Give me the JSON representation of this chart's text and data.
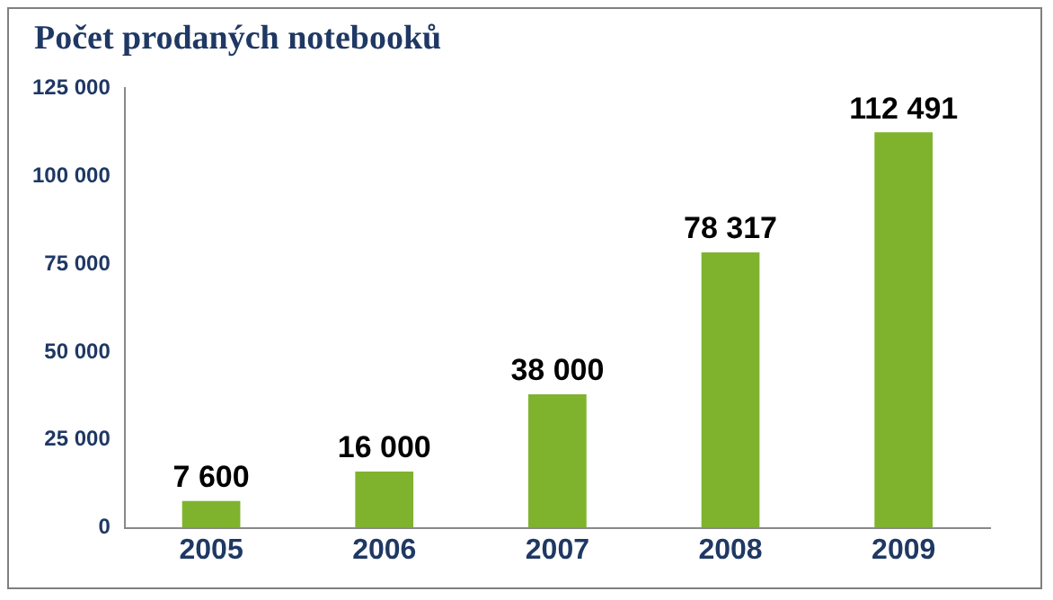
{
  "chart_data": {
    "type": "bar",
    "title": "Počet prodaných notebooků",
    "categories": [
      "2005",
      "2006",
      "2007",
      "2008",
      "2009"
    ],
    "values": [
      7600,
      16000,
      38000,
      78317,
      112491
    ],
    "value_labels": [
      "7 600",
      "16 000",
      "38 000",
      "78 317",
      "112 491"
    ],
    "color": "#7fb32e",
    "ylim": [
      0,
      125000
    ],
    "yticks": [
      {
        "value": 0,
        "label": "0"
      },
      {
        "value": 25000,
        "label": "25 000"
      },
      {
        "value": 50000,
        "label": "50 000"
      },
      {
        "value": 75000,
        "label": "75 000"
      },
      {
        "value": 100000,
        "label": "100 000"
      },
      {
        "value": 125000,
        "label": "125 000"
      }
    ],
    "grid": false,
    "legend": false
  }
}
